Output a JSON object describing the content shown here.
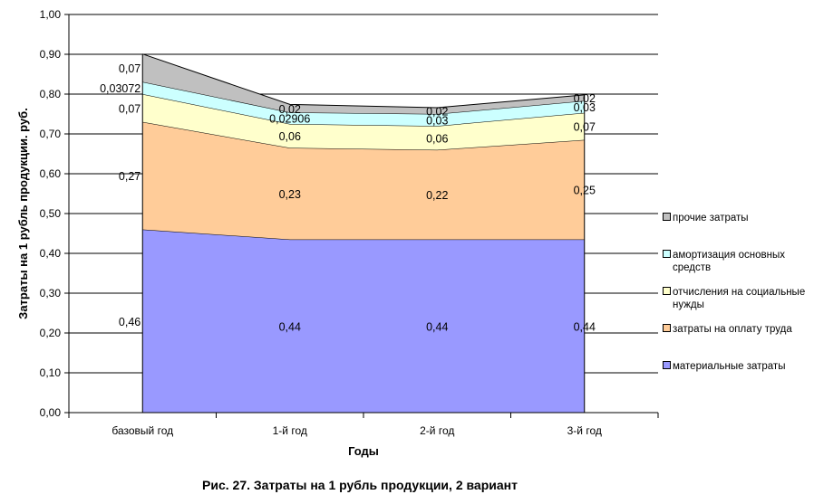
{
  "chart_data": {
    "type": "area",
    "stacked": true,
    "title": "Рис. 27. Затраты на 1 рубль продукции, 2 вариант",
    "xlabel": "Годы",
    "ylabel": "Затраты на 1 рубль продукции. руб.",
    "categories": [
      "базовый год",
      "1-й год",
      "2-й год",
      "3-й год"
    ],
    "ylim": [
      0,
      1
    ],
    "yticks": [
      "0,00",
      "0,10",
      "0,20",
      "0,30",
      "0,40",
      "0,50",
      "0,60",
      "0,70",
      "0,80",
      "0,90",
      "1,00"
    ],
    "grid": true,
    "legend_position": "right",
    "series": [
      {
        "name": "материальные затраты",
        "values": [
          0.46,
          0.435,
          0.435,
          0.435
        ],
        "labels": [
          "0,46",
          "0,44",
          "0,44",
          "0,44"
        ],
        "color": "#9999ff"
      },
      {
        "name": "затраты на оплату труда",
        "values": [
          0.27,
          0.23,
          0.225,
          0.25
        ],
        "labels": [
          "0,27",
          "0,23",
          "0,22",
          "0,25"
        ],
        "color": "#ffcc99"
      },
      {
        "name": "отчисления на социальные нужды",
        "values": [
          0.07,
          0.06,
          0.06,
          0.068
        ],
        "labels": [
          "0,07",
          "0,06",
          "0,06",
          "0,07"
        ],
        "color": "#ffffcc"
      },
      {
        "name": "амортизация основных средств",
        "values": [
          0.03072,
          0.02906,
          0.03,
          0.03
        ],
        "labels": [
          "0,03072",
          "0,02906",
          "0,03",
          "0,03"
        ],
        "color": "#ccffff"
      },
      {
        "name": "прочие затраты",
        "values": [
          0.07,
          0.02,
          0.016,
          0.015
        ],
        "labels": [
          "0,07",
          "0,02",
          "0,02",
          "0,02"
        ],
        "color": "#c0c0c0"
      }
    ]
  }
}
